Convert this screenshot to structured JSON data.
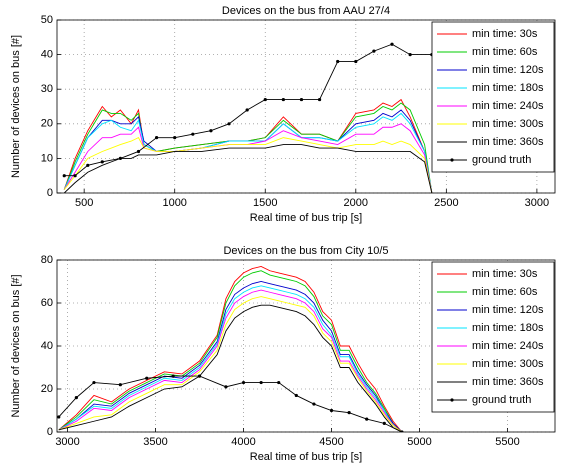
{
  "chart_data": [
    {
      "type": "line",
      "title": "Devices on the bus from AAU 27/4",
      "xlabel": "Real time of bus trip [s]",
      "ylabel": "Number of devices on bus [#]",
      "xlim": [
        350,
        3100
      ],
      "xticks": [
        500,
        1000,
        1500,
        2000,
        2500,
        3000
      ],
      "ylim": [
        0,
        50
      ],
      "yticks": [
        0,
        10,
        20,
        30,
        40,
        50
      ],
      "grid": true,
      "legend": "upper right",
      "x": [
        390,
        450,
        520,
        600,
        650,
        700,
        760,
        800,
        830,
        900,
        1000,
        1150,
        1300,
        1400,
        1500,
        1600,
        1700,
        1800,
        1900,
        2000,
        2100,
        2150,
        2200,
        2250,
        2300,
        2380,
        2420
      ],
      "series": [
        {
          "name": "min time: 30s",
          "color": "#ff0000",
          "values": [
            1,
            10,
            18,
            25,
            22,
            24,
            20,
            24,
            14,
            12,
            13,
            14,
            15,
            15,
            16,
            22,
            17,
            17,
            15,
            23,
            24,
            26,
            25,
            27,
            22,
            12,
            0
          ]
        },
        {
          "name": "min time: 60s",
          "color": "#00cc00",
          "values": [
            1,
            9,
            17,
            24,
            23,
            23,
            21,
            23,
            14,
            12,
            13,
            14,
            15,
            15,
            16,
            21,
            17,
            17,
            15,
            22,
            23,
            25,
            24,
            26,
            24,
            14,
            0
          ]
        },
        {
          "name": "min time: 120s",
          "color": "#0000cc",
          "values": [
            1,
            8,
            16,
            21,
            21,
            20,
            20,
            22,
            15,
            12,
            12,
            13,
            15,
            15,
            15,
            20,
            16,
            16,
            15,
            20,
            21,
            23,
            22,
            24,
            21,
            12,
            0
          ]
        },
        {
          "name": "min time: 180s",
          "color": "#00e5ff",
          "values": [
            1,
            8,
            16,
            20,
            21,
            19,
            18,
            21,
            14,
            12,
            12,
            13,
            15,
            15,
            15,
            20,
            16,
            16,
            15,
            19,
            20,
            22,
            21,
            23,
            20,
            12,
            0
          ]
        },
        {
          "name": "min time: 240s",
          "color": "#ff00ff",
          "values": [
            1,
            6,
            12,
            16,
            16,
            17,
            17,
            19,
            13,
            12,
            12,
            13,
            14,
            14,
            15,
            18,
            16,
            15,
            14,
            17,
            17,
            19,
            19,
            20,
            18,
            11,
            0
          ]
        },
        {
          "name": "min time: 300s",
          "color": "#ffff00",
          "values": [
            1,
            5,
            10,
            12,
            13,
            14,
            15,
            16,
            13,
            12,
            12,
            13,
            14,
            14,
            14,
            16,
            15,
            14,
            13,
            14,
            14,
            15,
            14,
            15,
            14,
            10,
            0
          ]
        },
        {
          "name": "min time: 360s",
          "color": "#000000",
          "values": [
            0,
            3,
            6,
            8,
            9,
            10,
            10,
            11,
            11,
            11,
            12,
            12,
            13,
            13,
            13,
            14,
            14,
            13,
            13,
            12,
            12,
            12,
            12,
            12,
            12,
            9,
            0
          ]
        },
        {
          "name": "ground truth",
          "color": "#000000",
          "markers": true,
          "x": [
            390,
            450,
            520,
            600,
            700,
            800,
            900,
            1000,
            1100,
            1200,
            1300,
            1400,
            1500,
            1600,
            1700,
            1800,
            1900,
            2000,
            2100,
            2200,
            2300,
            2420
          ],
          "values": [
            5,
            5,
            8,
            9,
            10,
            12,
            16,
            16,
            17,
            18,
            20,
            24,
            27,
            27,
            27,
            27,
            38,
            38,
            41,
            43,
            40,
            40
          ]
        }
      ]
    },
    {
      "type": "line",
      "title": "Devices on the bus from City 10/5",
      "xlabel": "Real time of bus trip [s]",
      "ylabel": "Number of devices on bus [#]",
      "xlim": [
        2940,
        5770
      ],
      "xticks": [
        3000,
        3500,
        4000,
        4500,
        5000,
        5500
      ],
      "ylim": [
        0,
        80
      ],
      "yticks": [
        0,
        20,
        40,
        60,
        80
      ],
      "grid": true,
      "legend": "upper right",
      "x": [
        2950,
        3050,
        3150,
        3250,
        3350,
        3450,
        3550,
        3650,
        3750,
        3850,
        3900,
        3950,
        4000,
        4050,
        4100,
        4150,
        4200,
        4250,
        4300,
        4350,
        4400,
        4450,
        4500,
        4550,
        4600,
        4650,
        4700,
        4750,
        4800,
        4850,
        4900
      ],
      "series": [
        {
          "name": "min time: 30s",
          "color": "#ff0000",
          "values": [
            1,
            8,
            17,
            14,
            20,
            24,
            28,
            27,
            33,
            45,
            62,
            70,
            74,
            76,
            77,
            75,
            74,
            73,
            72,
            70,
            65,
            56,
            52,
            40,
            40,
            32,
            25,
            20,
            12,
            5,
            0
          ]
        },
        {
          "name": "min time: 60s",
          "color": "#00cc00",
          "values": [
            1,
            7,
            15,
            13,
            19,
            23,
            27,
            26,
            32,
            44,
            60,
            68,
            72,
            74,
            75,
            73,
            72,
            71,
            70,
            68,
            63,
            54,
            50,
            38,
            38,
            30,
            23,
            18,
            11,
            4,
            0
          ]
        },
        {
          "name": "min time: 120s",
          "color": "#0000cc",
          "values": [
            1,
            6,
            13,
            12,
            18,
            22,
            26,
            25,
            31,
            42,
            57,
            64,
            67,
            69,
            70,
            69,
            68,
            67,
            66,
            64,
            60,
            52,
            47,
            36,
            36,
            28,
            22,
            17,
            10,
            4,
            0
          ]
        },
        {
          "name": "min time: 180s",
          "color": "#00e5ff",
          "values": [
            1,
            6,
            12,
            11,
            17,
            21,
            25,
            24,
            30,
            41,
            55,
            62,
            65,
            67,
            68,
            67,
            66,
            65,
            64,
            62,
            58,
            50,
            45,
            35,
            35,
            27,
            21,
            16,
            10,
            3,
            0
          ]
        },
        {
          "name": "min time: 240s",
          "color": "#ff00ff",
          "values": [
            1,
            5,
            11,
            10,
            16,
            20,
            24,
            23,
            29,
            40,
            53,
            60,
            63,
            65,
            66,
            65,
            64,
            63,
            62,
            60,
            56,
            48,
            44,
            33,
            33,
            26,
            20,
            15,
            9,
            3,
            0
          ]
        },
        {
          "name": "min time: 300s",
          "color": "#ffff00",
          "values": [
            1,
            4,
            7,
            8,
            14,
            18,
            22,
            22,
            28,
            38,
            50,
            57,
            60,
            62,
            63,
            62,
            61,
            60,
            59,
            58,
            54,
            46,
            42,
            32,
            32,
            25,
            19,
            14,
            8,
            3,
            0
          ]
        },
        {
          "name": "min time: 360s",
          "color": "#000000",
          "values": [
            1,
            3,
            5,
            7,
            12,
            16,
            20,
            21,
            26,
            36,
            47,
            53,
            56,
            58,
            59,
            59,
            58,
            57,
            56,
            54,
            50,
            44,
            40,
            30,
            30,
            23,
            18,
            13,
            7,
            2,
            0
          ]
        },
        {
          "name": "ground truth",
          "color": "#000000",
          "markers": true,
          "x": [
            2950,
            3050,
            3150,
            3300,
            3450,
            3600,
            3750,
            3900,
            4000,
            4100,
            4200,
            4300,
            4400,
            4500,
            4600,
            4700,
            4800,
            4900
          ],
          "values": [
            7,
            16,
            23,
            22,
            25,
            26,
            26,
            21,
            23,
            23,
            23,
            17,
            13,
            10,
            9,
            6,
            4,
            0
          ]
        }
      ]
    }
  ]
}
